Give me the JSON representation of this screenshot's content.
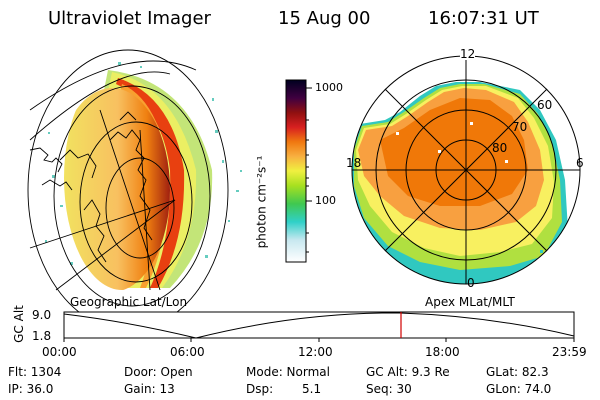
{
  "header": {
    "instrument": "Ultraviolet Imager",
    "date": "15 Aug 00",
    "time": "16:07:31 UT"
  },
  "colorbar": {
    "unit_label": "photon cm⁻²s⁻¹",
    "ticks": [
      "1000",
      "100"
    ]
  },
  "panels": {
    "left_label": "Geographic Lat/Lon",
    "right_label": "Apex MLat/MLT",
    "right_mlt_labels": [
      "12",
      "18",
      "6",
      "0"
    ],
    "right_lat_labels": [
      "60",
      "70",
      "80"
    ]
  },
  "altitude_plot": {
    "ylabel": "GC Alt",
    "ytick_top": "9.0",
    "ytick_bottom": "1.8",
    "xticks": [
      "00:00",
      "06:00",
      "12:00",
      "18:00",
      "23:59"
    ],
    "marker_color": "#d00000"
  },
  "status": {
    "flt": "Flt: 1304",
    "ip": "IP: 36.0",
    "door": "Door: Open",
    "gain": "Gain: 13",
    "mode": "Mode: Normal",
    "dsp_label": "Dsp:",
    "dsp_value": "5.1",
    "gc_alt": "GC Alt: 9.3 Re",
    "seq": "Seq: 30",
    "glat": "GLat: 82.3",
    "glon": "GLon: 74.0"
  }
}
